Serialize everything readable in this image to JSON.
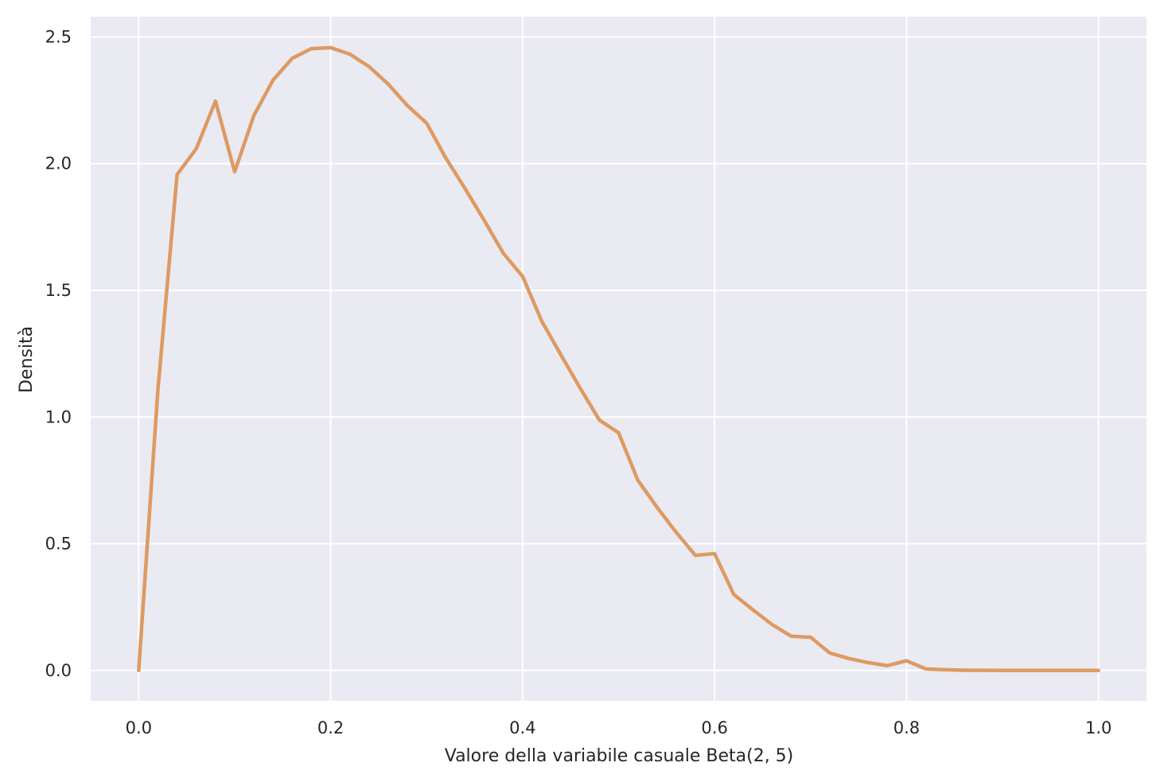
{
  "chart_data": {
    "type": "line",
    "title": "",
    "xlabel": "Valore della variabile casuale Beta(2, 5)",
    "ylabel": "Densità",
    "xlim": [
      -0.05,
      1.05
    ],
    "ylim": [
      -0.12,
      2.58
    ],
    "xticks": [
      0.0,
      0.2,
      0.4,
      0.6,
      0.8,
      1.0
    ],
    "xtick_labels": [
      "0.0",
      "0.2",
      "0.4",
      "0.6",
      "0.8",
      "1.0"
    ],
    "yticks": [
      0.0,
      0.5,
      1.0,
      1.5,
      2.0,
      2.5
    ],
    "ytick_labels": [
      "0.0",
      "0.5",
      "1.0",
      "1.5",
      "2.0",
      "2.5"
    ],
    "grid": true,
    "colors": {
      "background": "#eaeaf2",
      "grid": "#ffffff",
      "line": "#dd9a62"
    },
    "series": [
      {
        "x": [
          0.0,
          0.02,
          0.04,
          0.06,
          0.08,
          0.1,
          0.12,
          0.14,
          0.16,
          0.18,
          0.2,
          0.22,
          0.24,
          0.26,
          0.28,
          0.3,
          0.32,
          0.34,
          0.36,
          0.38,
          0.4,
          0.42,
          0.44,
          0.46,
          0.48,
          0.5,
          0.52,
          0.54,
          0.56,
          0.58,
          0.6,
          0.62,
          0.64,
          0.66,
          0.68,
          0.7,
          0.72,
          0.74,
          0.76,
          0.78,
          0.8,
          0.82,
          0.84,
          0.86,
          0.88,
          0.9,
          0.92,
          0.94,
          0.96,
          0.98,
          1.0
        ],
        "values": [
          0.0,
          1.107,
          1.957,
          2.059,
          2.247,
          1.968,
          2.19,
          2.33,
          2.416,
          2.454,
          2.458,
          2.432,
          2.383,
          2.314,
          2.229,
          2.16,
          2.022,
          1.902,
          1.776,
          1.646,
          1.555,
          1.378,
          1.245,
          1.114,
          0.988,
          0.938,
          0.751,
          0.644,
          0.545,
          0.454,
          0.461,
          0.3,
          0.239,
          0.181,
          0.135,
          0.131,
          0.069,
          0.047,
          0.031,
          0.019,
          0.0384,
          0.006,
          0.003,
          0.001,
          0.0004,
          0.0001,
          0.0,
          0.0,
          0.0,
          0.0,
          0.0
        ]
      }
    ]
  }
}
